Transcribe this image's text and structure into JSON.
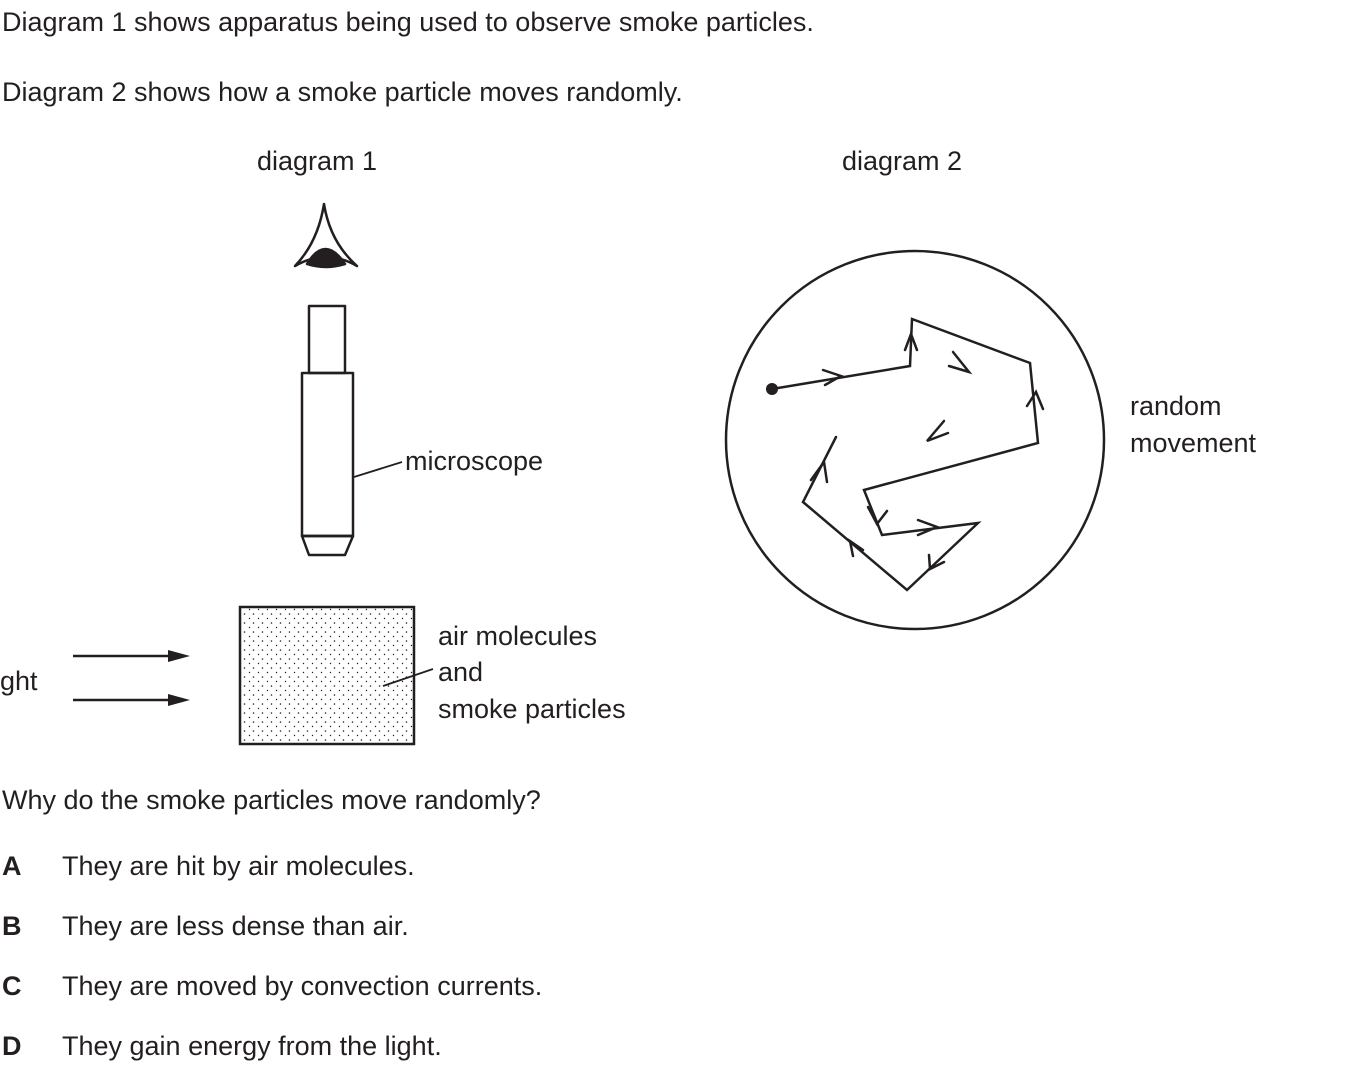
{
  "intro": {
    "line1": "Diagram 1 shows apparatus being used to observe smoke particles.",
    "line2": "Diagram 2 shows how a smoke particle moves randomly."
  },
  "diagram1": {
    "title": "diagram 1",
    "microscope_label": "microscope",
    "light_label": "ght",
    "box_label_line1": "air molecules",
    "box_label_line2": "and",
    "box_label_line3": "smoke particles"
  },
  "diagram2": {
    "title": "diagram 2",
    "label_line1": "random",
    "label_line2": "movement"
  },
  "question": {
    "text": "Why do the smoke particles move randomly?",
    "options": [
      {
        "letter": "A",
        "text": "They are hit by air molecules."
      },
      {
        "letter": "B",
        "text": "They are less dense than air."
      },
      {
        "letter": "C",
        "text": "They are moved by convection currents."
      },
      {
        "letter": "D",
        "text": "They gain energy from the light."
      }
    ]
  }
}
